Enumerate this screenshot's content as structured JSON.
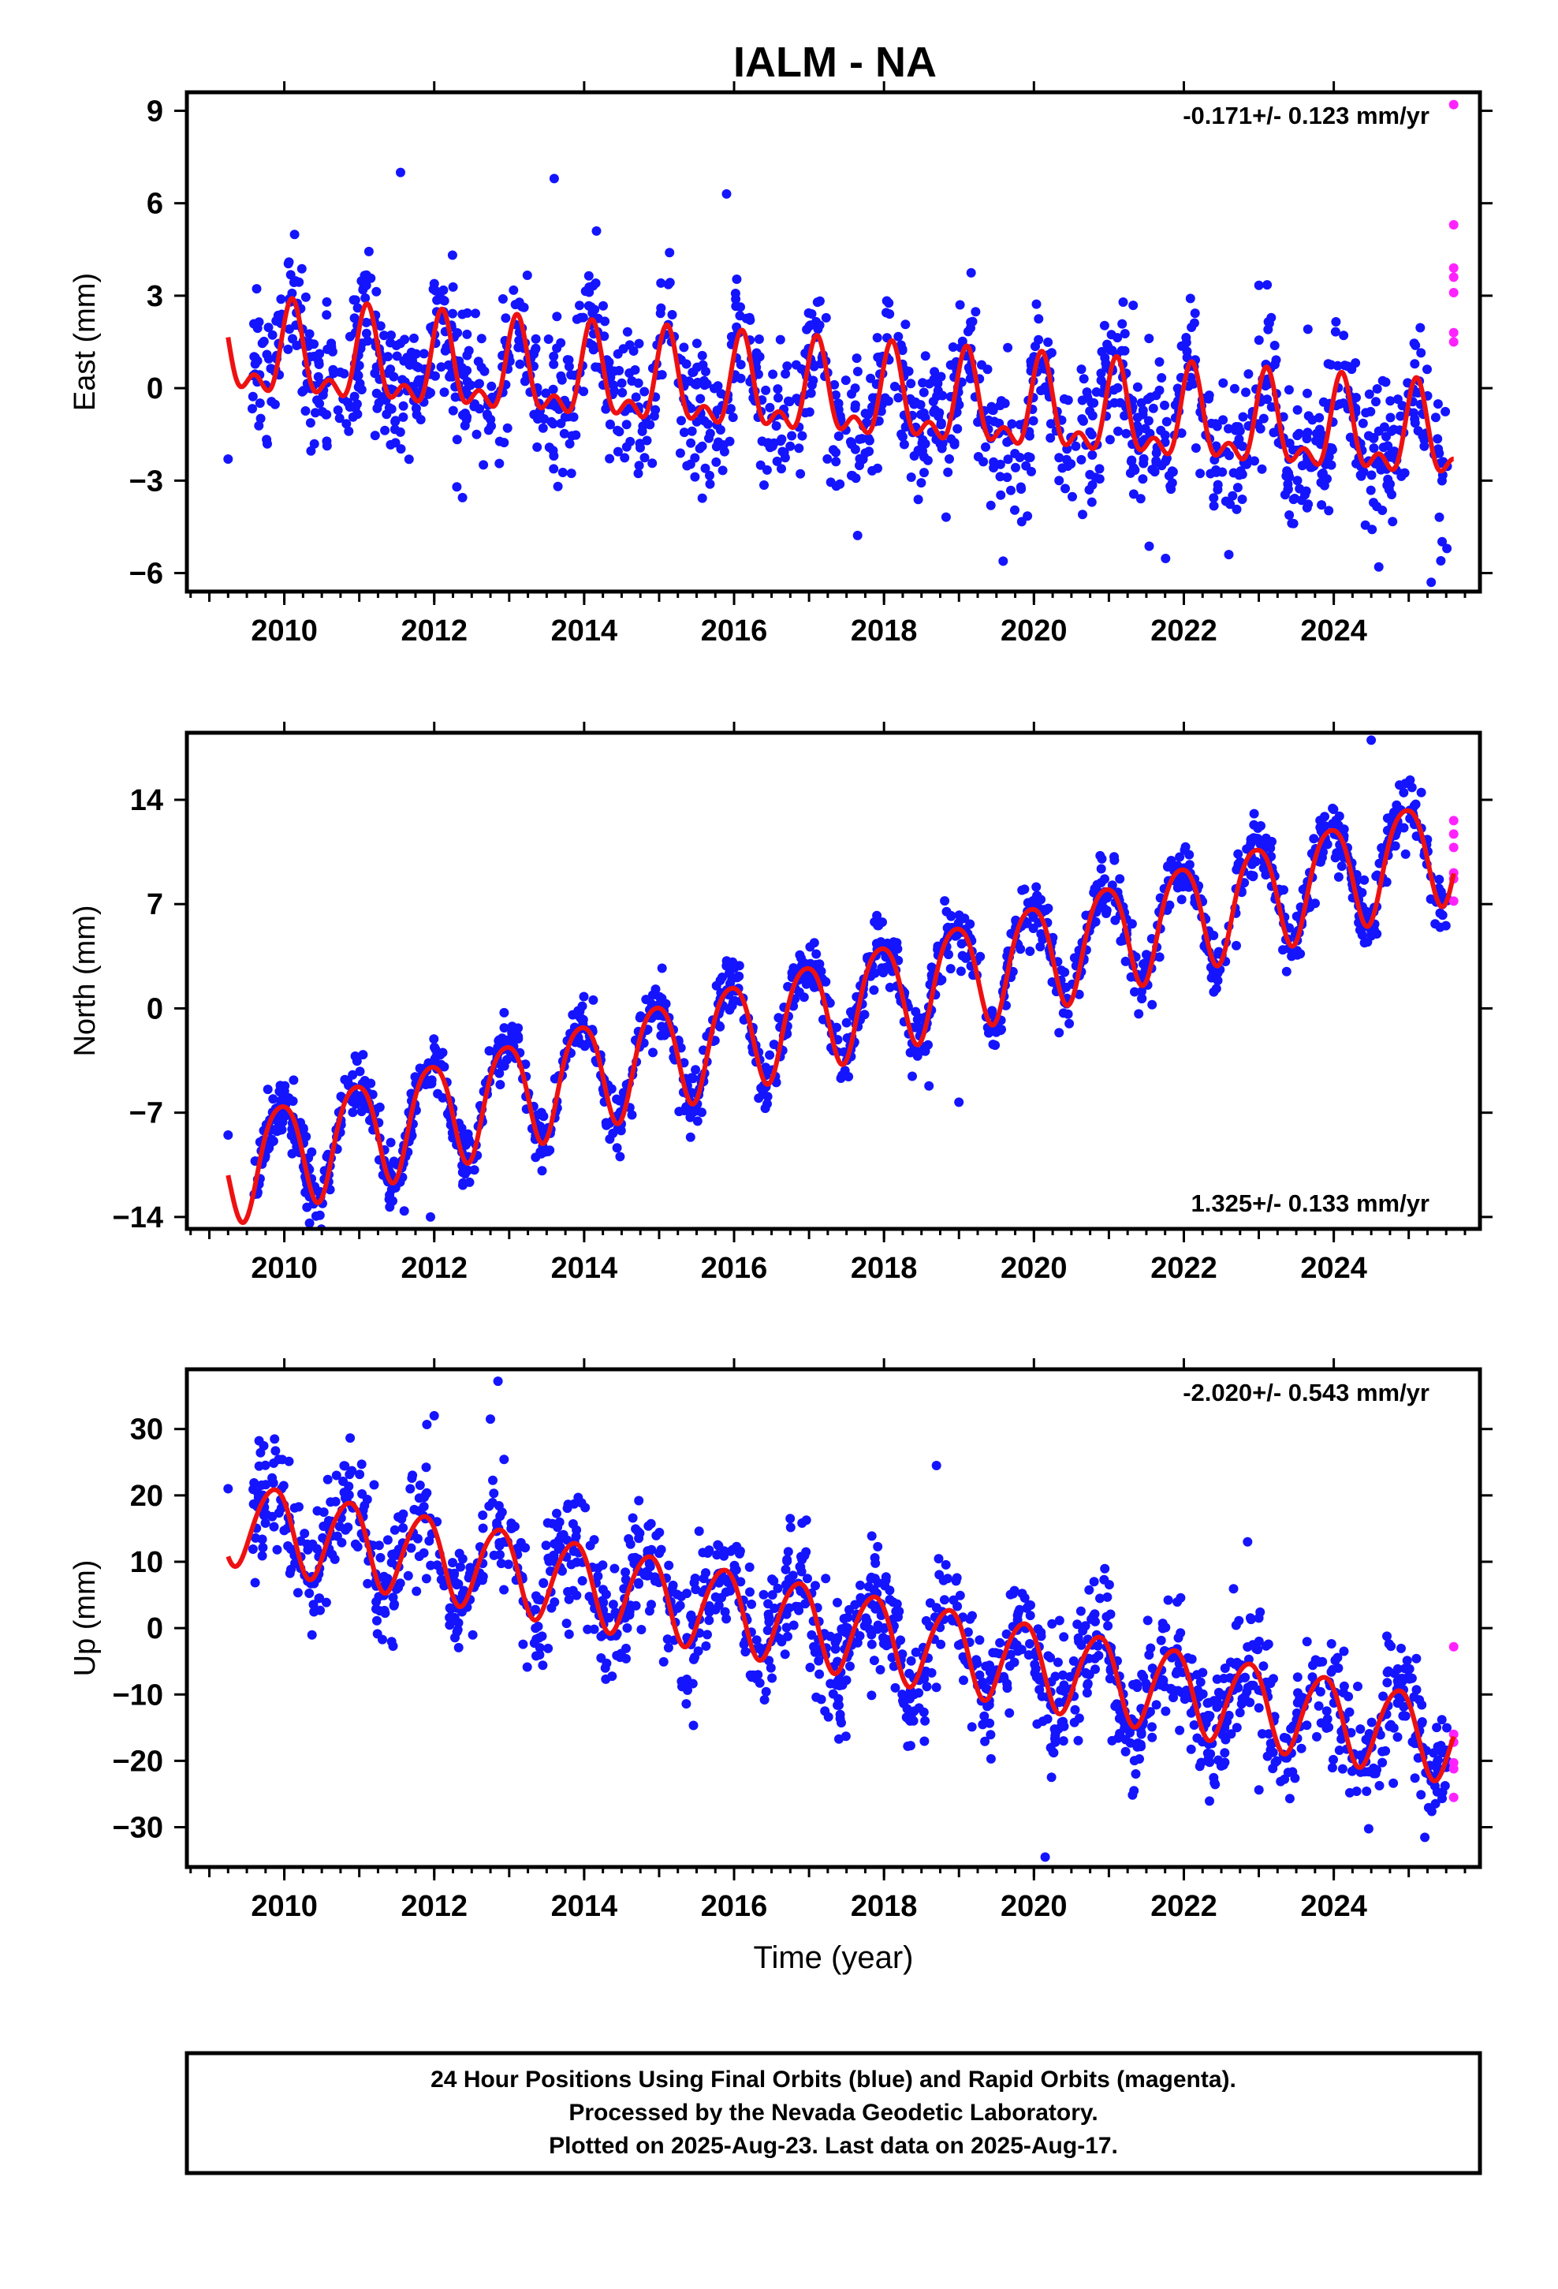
{
  "title": "IALM - NA",
  "chart_data": [
    {
      "type": "scatter",
      "name": "east",
      "ylabel": "East (mm)",
      "xlim": [
        2008.7,
        2025.95
      ],
      "ylim": [
        -6.6,
        9.6
      ],
      "yticks": [
        9,
        6,
        3,
        0,
        -3,
        -6
      ],
      "ytick_labels": [
        "9",
        "6",
        "3",
        "0",
        "−3",
        "−6"
      ],
      "xticks": [
        2010,
        2012,
        2014,
        2016,
        2018,
        2020,
        2022,
        2024
      ],
      "xtick_labels": [
        "2010",
        "2012",
        "2014",
        "2016",
        "2018",
        "2020",
        "2022",
        "2024"
      ],
      "rate_label": "-0.171+/- 0.123 mm/yr",
      "rate_position": "top-right",
      "model_fit": {
        "color": "#ee1111",
        "offset": 1.05,
        "trend": -0.171,
        "ref_year": 2009.25,
        "annual": [
          0.8,
          1.0
        ],
        "semiannual": [
          0.7,
          0.2
        ]
      },
      "final_orbits": {
        "color": "#1414ff",
        "start": 2009.55,
        "end": 2025.52,
        "scatter_sd": 1.15,
        "count": 1500,
        "seed": 11,
        "outliers": [
          [
            2009.25,
            -2.3
          ],
          [
            2011.55,
            7.0
          ],
          [
            2013.6,
            6.8
          ],
          [
            2015.9,
            6.3
          ],
          [
            2022.6,
            -5.4
          ],
          [
            2024.6,
            -5.8
          ],
          [
            2025.3,
            -6.3
          ]
        ]
      },
      "rapid_orbits": {
        "color": "#ff22ff",
        "x": 2025.6,
        "values": [
          9.2,
          5.3,
          3.9,
          3.6,
          3.1,
          1.8,
          1.5
        ]
      }
    },
    {
      "type": "scatter",
      "name": "north",
      "ylabel": "North (mm)",
      "xlim": [
        2008.7,
        2025.95
      ],
      "ylim": [
        -14.8,
        18.5
      ],
      "yticks": [
        14,
        7,
        0,
        -7,
        -14
      ],
      "ytick_labels": [
        "14",
        "7",
        "0",
        "−7",
        "−14"
      ],
      "xticks": [
        2010,
        2012,
        2014,
        2016,
        2018,
        2020,
        2022,
        2024
      ],
      "xtick_labels": [
        "2010",
        "2012",
        "2014",
        "2016",
        "2018",
        "2020",
        "2022",
        "2024"
      ],
      "rate_label": "1.325+/- 0.133 mm/yr",
      "rate_position": "bottom-right",
      "model_fit": {
        "color": "#ee1111",
        "offset": -10.6,
        "trend": 1.325,
        "ref_year": 2009.25,
        "annual": [
          -1.0,
          3.4
        ],
        "semiannual": [
          0.3,
          -0.4
        ]
      },
      "final_orbits": {
        "color": "#1414ff",
        "start": 2009.55,
        "end": 2025.52,
        "scatter_sd": 1.0,
        "count": 1500,
        "seed": 23,
        "outliers": [
          [
            2009.25,
            -8.5
          ],
          [
            2018.6,
            -5.2
          ],
          [
            2019.0,
            -6.3
          ],
          [
            2024.5,
            18.0
          ],
          [
            2011.95,
            -14.0
          ],
          [
            2011.6,
            -13.6
          ]
        ]
      },
      "rapid_orbits": {
        "color": "#ff22ff",
        "x": 2025.6,
        "values": [
          12.6,
          11.7,
          10.8,
          9.1,
          8.7,
          7.2
        ]
      }
    },
    {
      "type": "scatter",
      "name": "up",
      "ylabel": "Up (mm)",
      "xlim": [
        2008.7,
        2025.95
      ],
      "ylim": [
        -36,
        39
      ],
      "yticks": [
        30,
        20,
        10,
        0,
        -10,
        -20,
        -30
      ],
      "ytick_labels": [
        "30",
        "20",
        "10",
        "0",
        "−10",
        "−20",
        "−30"
      ],
      "xticks": [
        2010,
        2012,
        2014,
        2016,
        2018,
        2020,
        2022,
        2024
      ],
      "xtick_labels": [
        "2010",
        "2012",
        "2014",
        "2016",
        "2018",
        "2020",
        "2022",
        "2024"
      ],
      "xlabel": "Time (year)",
      "rate_label": "-2.020+/- 0.543 mm/yr",
      "rate_position": "top-right",
      "model_fit": {
        "color": "#ee1111",
        "offset": 16.3,
        "trend": -2.02,
        "ref_year": 2009.25,
        "annual": [
          -5.0,
          3.8
        ],
        "semiannual": [
          0.4,
          0.5
        ]
      },
      "final_orbits": {
        "color": "#1414ff",
        "start": 2009.55,
        "end": 2025.52,
        "scatter_sd": 4.6,
        "count": 1500,
        "seed": 37,
        "outliers": [
          [
            2009.25,
            21.0
          ],
          [
            2012.85,
            37.2
          ],
          [
            2020.15,
            -34.5
          ],
          [
            2012.0,
            32.0
          ],
          [
            2012.75,
            31.5
          ],
          [
            2018.7,
            24.5
          ],
          [
            2022.85,
            13.0
          ]
        ]
      },
      "rapid_orbits": {
        "color": "#ff22ff",
        "x": 2025.6,
        "values": [
          -2.8,
          -16.0,
          -17.2,
          -20.3,
          -21.2,
          -25.5
        ]
      }
    }
  ],
  "footer": {
    "line1": "24 Hour Positions Using Final Orbits (blue) and Rapid Orbits (magenta).",
    "line2": "Processed by the Nevada Geodetic Laboratory.",
    "line3": "Plotted on 2025-Aug-23. Last data on 2025-Aug-17."
  }
}
